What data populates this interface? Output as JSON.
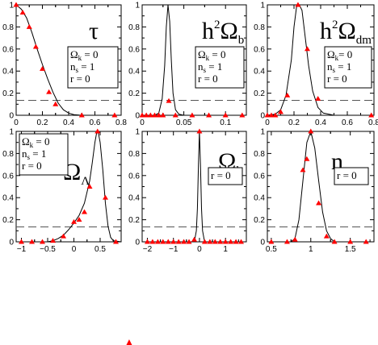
{
  "colors": {
    "curve": "#000000",
    "points": "#ff0000",
    "threshold": "#555555",
    "frame": "#000000"
  },
  "chart_data": [
    {
      "type": "line",
      "title": "τ",
      "title_parts": {
        "main": "τ",
        "sup": "",
        "sub": ""
      },
      "box_lines": [
        {
          "sym": "Ω",
          "sub": "k",
          "val": " = 0"
        },
        {
          "sym": "n",
          "sub": "s",
          "val": " = 1"
        },
        {
          "sym": "r",
          "sub": "",
          "val": " = 0"
        }
      ],
      "xlim": [
        0,
        0.8
      ],
      "ylim": [
        0,
        1
      ],
      "xticks": [
        0,
        0.2,
        0.4,
        0.6,
        0.8
      ],
      "xtick_labels": [
        "0",
        "0.2",
        "0.4",
        "0.6",
        "0.8"
      ],
      "yticks": [
        0,
        0.2,
        0.4,
        0.6,
        0.8,
        1
      ],
      "ytick_labels": [
        "0",
        "0.2",
        "0.4",
        "0.6",
        "0.8",
        "1"
      ],
      "threshold": 0.135,
      "curve": {
        "x": [
          0,
          0.04,
          0.08,
          0.12,
          0.16,
          0.2,
          0.24,
          0.28,
          0.32,
          0.36,
          0.4,
          0.44,
          0.48,
          0.52,
          0.6,
          0.7,
          0.8
        ],
        "y": [
          1,
          0.96,
          0.88,
          0.75,
          0.6,
          0.46,
          0.33,
          0.21,
          0.11,
          0.05,
          0.02,
          0.006,
          0.002,
          0,
          0,
          0,
          0
        ]
      },
      "points": {
        "x": [
          0,
          0.05,
          0.1,
          0.15,
          0.2,
          0.25,
          0.3,
          0.5,
          0.75
        ],
        "y": [
          1,
          0.93,
          0.8,
          0.62,
          0.42,
          0.21,
          0.1,
          0,
          0
        ]
      }
    },
    {
      "type": "line",
      "title": "h²Ω_b",
      "title_parts": {
        "main": "h",
        "sup": "2",
        "omega": "Ω",
        "sub": "b"
      },
      "box_lines": [
        {
          "sym": "Ω",
          "sub": "k",
          "val": " = 0"
        },
        {
          "sym": "n",
          "sub": "s",
          "val": " = 1"
        },
        {
          "sym": "r",
          "sub": "",
          "val": " = 0"
        }
      ],
      "xlim": [
        0,
        0.125
      ],
      "ylim": [
        0,
        1
      ],
      "xticks": [
        0,
        0.05,
        0.1
      ],
      "xtick_labels": [
        "0",
        "0.05",
        "0.1"
      ],
      "yticks": [
        0,
        0.2,
        0.4,
        0.6,
        0.8,
        1
      ],
      "ytick_labels": [
        "0",
        "0.2",
        "0.4",
        "0.6",
        "0.8",
        "1"
      ],
      "threshold": 0.135,
      "curve": {
        "x": [
          0,
          0.015,
          0.02,
          0.024,
          0.027,
          0.029,
          0.031,
          0.033,
          0.035,
          0.037,
          0.04,
          0.044,
          0.05,
          0.125
        ],
        "y": [
          0,
          0,
          0.02,
          0.15,
          0.45,
          0.8,
          1,
          0.85,
          0.5,
          0.2,
          0.05,
          0.01,
          0,
          0
        ]
      },
      "points": {
        "x": [
          0,
          0.005,
          0.01,
          0.015,
          0.02,
          0.025,
          0.032,
          0.04,
          0.06,
          0.08,
          0.1,
          0.12
        ],
        "y": [
          0,
          0,
          0,
          0,
          0,
          0,
          0.13,
          0,
          0,
          0,
          0,
          0
        ]
      }
    },
    {
      "type": "line",
      "title": "h²Ω_dm",
      "title_parts": {
        "main": "h",
        "sup": "2",
        "omega": "Ω",
        "sub": "dm"
      },
      "box_lines": [
        {
          "sym": "Ω",
          "sub": "k",
          "val": "= 0"
        },
        {
          "sym": "n",
          "sub": "s",
          "val": " = 1"
        },
        {
          "sym": "r",
          "sub": "",
          "val": " = 0"
        }
      ],
      "xlim": [
        0,
        0.8
      ],
      "ylim": [
        0,
        1
      ],
      "xticks": [
        0,
        0.2,
        0.4,
        0.6,
        0.8
      ],
      "xtick_labels": [
        "0",
        "0.2",
        "0.4",
        "0.6",
        "0.8"
      ],
      "yticks": [
        0,
        0.2,
        0.4,
        0.6,
        0.8,
        1
      ],
      "ytick_labels": [
        "0",
        "0.2",
        "0.4",
        "0.6",
        "0.8",
        "1"
      ],
      "threshold": 0.135,
      "curve": {
        "x": [
          0,
          0.06,
          0.1,
          0.14,
          0.18,
          0.2,
          0.22,
          0.24,
          0.26,
          0.28,
          0.31,
          0.34,
          0.38,
          0.42,
          0.5,
          0.8
        ],
        "y": [
          0,
          0.01,
          0.05,
          0.18,
          0.5,
          0.8,
          0.99,
          1,
          0.95,
          0.75,
          0.45,
          0.22,
          0.07,
          0.02,
          0,
          0
        ]
      },
      "points": {
        "x": [
          0,
          0.03,
          0.06,
          0.1,
          0.15,
          0.23,
          0.3,
          0.38,
          0.78
        ],
        "y": [
          0,
          0,
          0,
          0.03,
          0.18,
          1,
          0.6,
          0.15,
          0
        ]
      }
    },
    {
      "type": "line",
      "title": "Ω_Λ",
      "title_parts": {
        "main": "",
        "sup": "",
        "omega": "Ω",
        "sub": "Λ"
      },
      "box_lines": [
        {
          "sym": "Ω",
          "sub": "k",
          "val": " = 0"
        },
        {
          "sym": "n",
          "sub": "s",
          "val": " = 1"
        },
        {
          "sym": "r",
          "sub": "",
          "val": " = 0"
        }
      ],
      "xlim": [
        -1.1,
        0.9
      ],
      "ylim": [
        0,
        1
      ],
      "xticks": [
        -1,
        -0.5,
        0,
        0.5
      ],
      "xtick_labels": [
        "−1",
        "−0.5",
        "0",
        "0.5"
      ],
      "yticks": [
        0,
        0.2,
        0.4,
        0.6,
        0.8,
        1
      ],
      "ytick_labels": [
        "0",
        "0.2",
        "0.4",
        "0.6",
        "0.8",
        "1"
      ],
      "threshold": 0.135,
      "curve": {
        "x": [
          -1.1,
          -0.5,
          -0.4,
          -0.3,
          -0.2,
          -0.1,
          0,
          0.1,
          0.2,
          0.3,
          0.35,
          0.4,
          0.43,
          0.46,
          0.5,
          0.55,
          0.6,
          0.65,
          0.7,
          0.75,
          0.9
        ],
        "y": [
          0,
          0,
          0.01,
          0.03,
          0.06,
          0.11,
          0.17,
          0.24,
          0.35,
          0.55,
          0.72,
          0.9,
          0.98,
          1,
          0.9,
          0.65,
          0.35,
          0.14,
          0.04,
          0.01,
          0
        ]
      },
      "points": {
        "x": [
          -1,
          -0.8,
          -0.6,
          -0.4,
          -0.2,
          0,
          0.1,
          0.2,
          0.3,
          0.45,
          0.6,
          0.8
        ],
        "y": [
          0,
          0,
          0,
          0.01,
          0.05,
          0.18,
          0.2,
          0.27,
          0.5,
          1,
          0.4,
          0
        ]
      }
    },
    {
      "type": "line",
      "title": "Ω_k",
      "title_parts": {
        "main": "",
        "sup": "",
        "omega": "Ω",
        "sub": "k"
      },
      "box_lines": [
        {
          "sym": "r",
          "sub": "",
          "val": " = 0"
        }
      ],
      "xlim": [
        -2.2,
        1.8
      ],
      "ylim": [
        0,
        1
      ],
      "xticks": [
        -2,
        -1,
        0,
        1
      ],
      "xtick_labels": [
        "−2",
        "−1",
        "0",
        "1"
      ],
      "yticks": [
        0,
        0.2,
        0.4,
        0.6,
        0.8,
        1
      ],
      "ytick_labels": [
        "0",
        "0.2",
        "0.4",
        "0.6",
        "0.8",
        "1"
      ],
      "threshold": 0.135,
      "curve": {
        "x": [
          -2.2,
          -0.25,
          -0.18,
          -0.12,
          -0.08,
          -0.04,
          0,
          0.04,
          0.08,
          0.12,
          0.18,
          0.25,
          1.8
        ],
        "y": [
          0,
          0,
          0.02,
          0.1,
          0.3,
          0.7,
          1,
          0.7,
          0.3,
          0.1,
          0.02,
          0,
          0
        ]
      },
      "points": {
        "x": [
          -2,
          -1.8,
          -1.6,
          -1.4,
          -1.2,
          -1,
          -0.8,
          -0.6,
          -0.4,
          -0.2,
          0,
          0.2,
          0.4,
          0.6,
          0.8,
          1,
          1.2,
          1.4,
          1.6
        ],
        "y": [
          0,
          0,
          0,
          0,
          0,
          0,
          0,
          0,
          0,
          0.02,
          1,
          0,
          0,
          0,
          0,
          0,
          0,
          0,
          0
        ]
      }
    },
    {
      "type": "line",
      "title": "n_s",
      "title_parts": {
        "main": "n",
        "sup": "",
        "sub": "s"
      },
      "box_lines": [
        {
          "sym": "r",
          "sub": "",
          "val": " = 0"
        }
      ],
      "xlim": [
        0.45,
        1.8
      ],
      "ylim": [
        0,
        1
      ],
      "xticks": [
        0.5,
        1,
        1.5
      ],
      "xtick_labels": [
        "0.5",
        "1",
        "1.5"
      ],
      "yticks": [
        0,
        0.2,
        0.4,
        0.6,
        0.8,
        1
      ],
      "ytick_labels": [
        "0",
        "0.2",
        "0.4",
        "0.6",
        "0.8",
        "1"
      ],
      "threshold": 0.135,
      "curve": {
        "x": [
          0.45,
          0.75,
          0.8,
          0.85,
          0.9,
          0.95,
          1.0,
          1.05,
          1.1,
          1.15,
          1.2,
          1.25,
          1.3,
          1.8
        ],
        "y": [
          0,
          0,
          0.03,
          0.2,
          0.55,
          0.9,
          1,
          0.85,
          0.55,
          0.27,
          0.1,
          0.03,
          0,
          0
        ]
      },
      "points": {
        "x": [
          0.5,
          0.7,
          0.8,
          0.9,
          0.95,
          1.0,
          1.1,
          1.2,
          1.3,
          1.5,
          1.7
        ],
        "y": [
          0,
          0,
          0.02,
          0.65,
          0.75,
          1,
          0.35,
          0.05,
          0,
          0,
          0
        ]
      }
    }
  ],
  "extra_marker": {
    "label": "▲"
  }
}
